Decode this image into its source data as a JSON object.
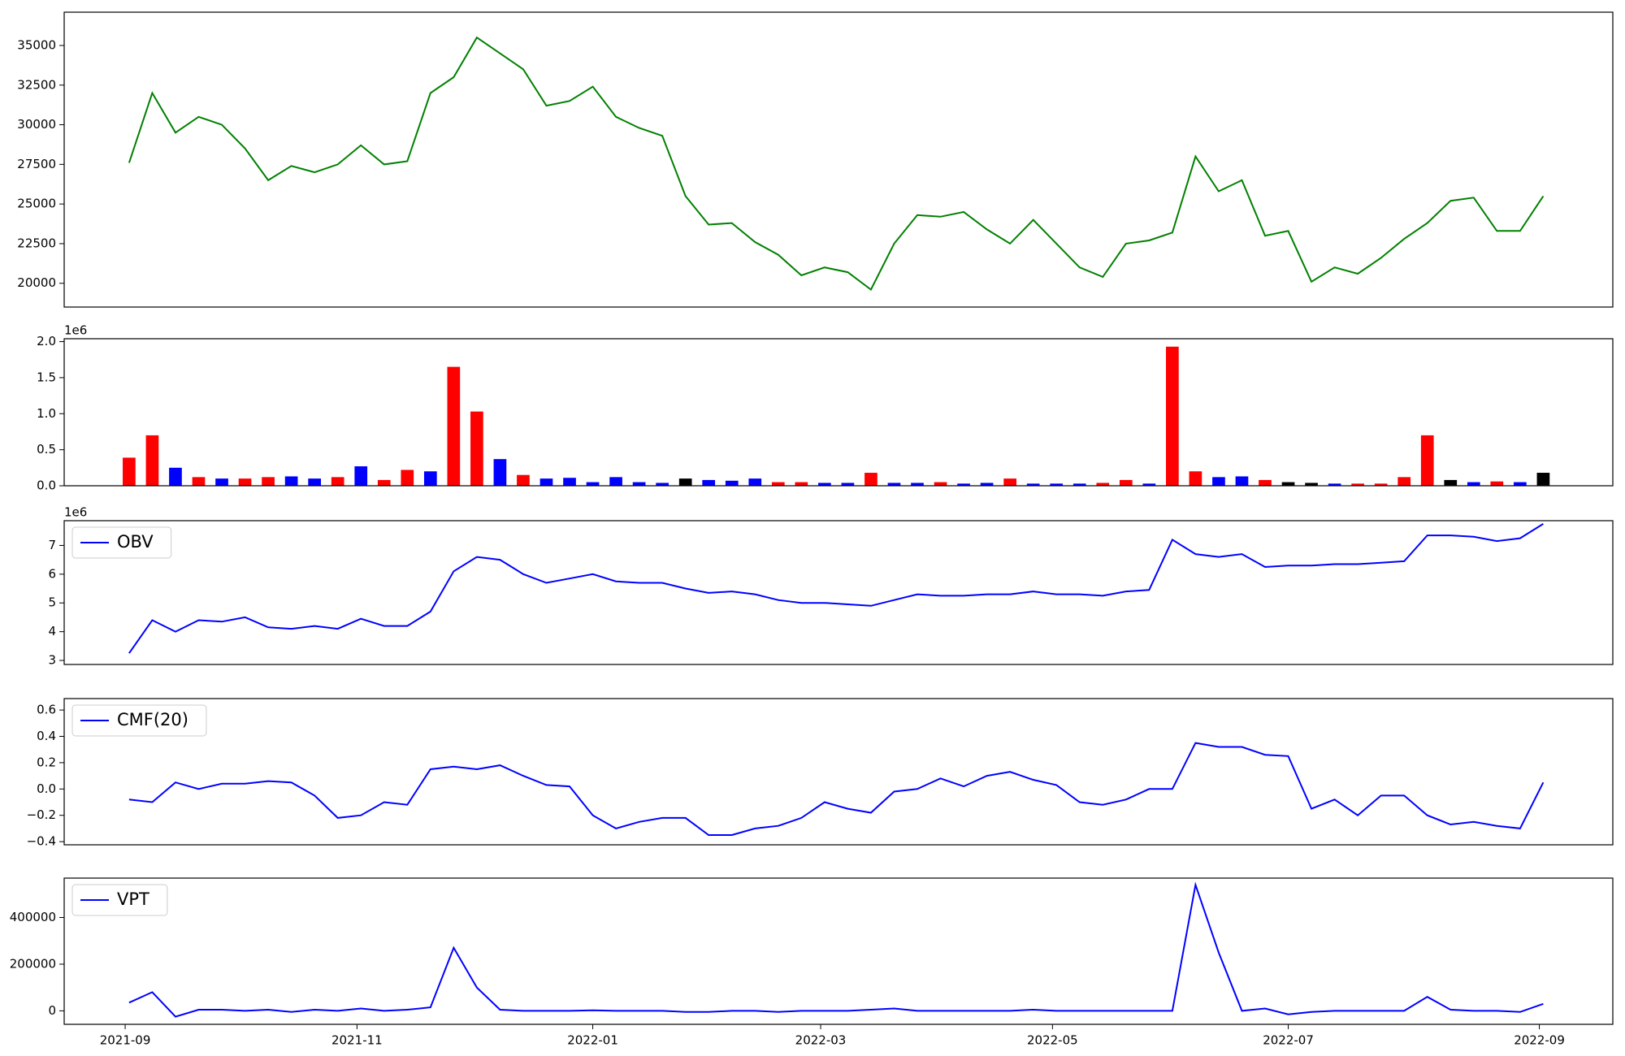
{
  "chart_data": [
    {
      "type": "line",
      "xlim": [
        -2.8,
        64
      ],
      "ylim": [
        18500,
        37100
      ],
      "yticks": [
        20000,
        22500,
        25000,
        27500,
        30000,
        32500,
        35000
      ],
      "grid": false,
      "series": [
        {
          "color": "#008000",
          "values": [
            27600,
            32000,
            29500,
            30500,
            30000,
            28500,
            26500,
            27400,
            27000,
            27500,
            28700,
            27500,
            27700,
            32000,
            33000,
            35500,
            34500,
            33500,
            31200,
            31500,
            32400,
            30500,
            29800,
            29300,
            25500,
            23700,
            23800,
            22600,
            21800,
            20500,
            21000,
            20700,
            19600,
            22500,
            24300,
            24200,
            24500,
            23400,
            22500,
            24000,
            22500,
            21000,
            20400,
            22500,
            22700,
            23200,
            28000,
            25800,
            26500,
            23000,
            23300,
            20100,
            21000,
            20600,
            21600,
            22800,
            23800,
            25200,
            25400,
            23300,
            23300,
            25500
          ]
        }
      ]
    },
    {
      "type": "bar",
      "xlim": [
        -2.8,
        64
      ],
      "ylim": [
        0,
        2.04
      ],
      "y_offset_label": "1e6",
      "yticks": [
        {
          "value": 0,
          "label": "0.0"
        },
        {
          "value": 0.5,
          "label": "0.5"
        },
        {
          "value": 1,
          "label": "1.0"
        },
        {
          "value": 1.5,
          "label": "1.5"
        },
        {
          "value": 2,
          "label": "2.0"
        }
      ],
      "grid": false,
      "values": [
        0.39,
        0.7,
        0.25,
        0.12,
        0.1,
        0.1,
        0.12,
        0.13,
        0.1,
        0.12,
        0.27,
        0.08,
        0.22,
        0.2,
        1.65,
        1.03,
        0.37,
        0.15,
        0.1,
        0.11,
        0.05,
        0.12,
        0.05,
        0.04,
        0.1,
        0.08,
        0.07,
        0.1,
        0.05,
        0.05,
        0.04,
        0.04,
        0.18,
        0.04,
        0.04,
        0.05,
        0.03,
        0.04,
        0.1,
        0.03,
        0.03,
        0.03,
        0.04,
        0.08,
        0.03,
        1.93,
        0.2,
        0.12,
        0.13,
        0.08,
        0.05,
        0.04,
        0.03,
        0.03,
        0.03,
        0.12,
        0.7,
        0.08,
        0.05,
        0.06,
        0.05,
        0.18
      ],
      "colors": [
        "#ff0000",
        "#ff0000",
        "#0000ff",
        "#ff0000",
        "#0000ff",
        "#ff0000",
        "#ff0000",
        "#0000ff",
        "#0000ff",
        "#ff0000",
        "#0000ff",
        "#ff0000",
        "#ff0000",
        "#0000ff",
        "#ff0000",
        "#ff0000",
        "#0000ff",
        "#ff0000",
        "#0000ff",
        "#0000ff",
        "#0000ff",
        "#0000ff",
        "#0000ff",
        "#0000ff",
        "#000000",
        "#0000ff",
        "#0000ff",
        "#0000ff",
        "#ff0000",
        "#ff0000",
        "#0000ff",
        "#0000ff",
        "#ff0000",
        "#0000ff",
        "#0000ff",
        "#ff0000",
        "#0000ff",
        "#0000ff",
        "#ff0000",
        "#0000ff",
        "#0000ff",
        "#0000ff",
        "#ff0000",
        "#ff0000",
        "#0000ff",
        "#ff0000",
        "#ff0000",
        "#0000ff",
        "#0000ff",
        "#ff0000",
        "#000000",
        "#000000",
        "#0000ff",
        "#ff0000",
        "#ff0000",
        "#ff0000",
        "#ff0000",
        "#000000",
        "#0000ff",
        "#ff0000",
        "#0000ff",
        "#000000"
      ]
    },
    {
      "type": "line",
      "xlim": [
        -2.8,
        64
      ],
      "ylim": [
        2.86,
        7.86
      ],
      "y_offset_label": "1e6",
      "yticks": [
        3,
        4,
        5,
        6,
        7
      ],
      "grid": false,
      "legend": "upper left",
      "series": [
        {
          "name": "OBV",
          "color": "#0000ff",
          "values": [
            3.25,
            4.4,
            4.0,
            4.4,
            4.35,
            4.5,
            4.15,
            4.1,
            4.2,
            4.1,
            4.45,
            4.2,
            4.2,
            4.7,
            6.1,
            6.6,
            6.5,
            6.0,
            5.7,
            5.85,
            6.0,
            5.75,
            5.7,
            5.7,
            5.5,
            5.35,
            5.4,
            5.3,
            5.1,
            5.0,
            5.0,
            4.95,
            4.9,
            5.1,
            5.3,
            5.25,
            5.25,
            5.3,
            5.3,
            5.4,
            5.3,
            5.3,
            5.25,
            5.4,
            5.45,
            7.2,
            6.7,
            6.6,
            6.7,
            6.25,
            6.3,
            6.3,
            6.35,
            6.35,
            6.4,
            6.45,
            7.35,
            7.35,
            7.3,
            7.15,
            7.25,
            7.75
          ]
        }
      ]
    },
    {
      "type": "line",
      "xlim": [
        -2.8,
        64
      ],
      "ylim": [
        -0.424,
        0.687
      ],
      "yticks": [
        {
          "value": -0.4,
          "label": "−0.4"
        },
        {
          "value": -0.2,
          "label": "−0.2"
        },
        {
          "value": 0,
          "label": "0.0"
        },
        0.2,
        0.4,
        0.6
      ],
      "grid": false,
      "legend": "upper left",
      "series": [
        {
          "name": "CMF(20)",
          "color": "#0000ff",
          "values": [
            -0.08,
            -0.1,
            0.05,
            0.0,
            0.04,
            0.04,
            0.06,
            0.05,
            -0.05,
            -0.22,
            -0.2,
            -0.1,
            -0.12,
            0.15,
            0.17,
            0.15,
            0.18,
            0.1,
            0.03,
            0.02,
            -0.2,
            -0.3,
            -0.25,
            -0.22,
            -0.22,
            -0.35,
            -0.35,
            -0.3,
            -0.28,
            -0.22,
            -0.1,
            -0.15,
            -0.18,
            -0.02,
            0.0,
            0.08,
            0.02,
            0.1,
            0.13,
            0.07,
            0.03,
            -0.1,
            -0.12,
            -0.08,
            0.0,
            0.0,
            0.35,
            0.32,
            0.32,
            0.26,
            0.25,
            -0.15,
            -0.08,
            -0.2,
            -0.05,
            -0.05,
            -0.2,
            -0.27,
            -0.25,
            -0.28,
            -0.3,
            0.05
          ]
        }
      ]
    },
    {
      "type": "line",
      "xlim": [
        -2.8,
        64
      ],
      "ylim": [
        -57800,
        568900
      ],
      "yticks": [
        0,
        200000,
        400000
      ],
      "grid": false,
      "legend": "upper left",
      "xticks": [
        {
          "value": -0.17,
          "label": "2021-09"
        },
        {
          "value": 9.83,
          "label": "2021-11"
        },
        {
          "value": 20,
          "label": "2022-01"
        },
        {
          "value": 29.83,
          "label": "2022-03"
        },
        {
          "value": 39.83,
          "label": "2022-05"
        },
        {
          "value": 50,
          "label": "2022-07"
        },
        {
          "value": 60.83,
          "label": "2022-09"
        }
      ],
      "series": [
        {
          "name": "VPT",
          "color": "#0000ff",
          "values": [
            35000,
            80000,
            -25000,
            5000,
            5000,
            0,
            5000,
            -5000,
            5000,
            0,
            10000,
            0,
            5000,
            15000,
            270000,
            100000,
            5000,
            0,
            0,
            0,
            2000,
            0,
            0,
            0,
            -5000,
            -5000,
            0,
            0,
            -5000,
            0,
            0,
            0,
            5000,
            10000,
            0,
            0,
            0,
            0,
            0,
            5000,
            0,
            0,
            0,
            0,
            0,
            0,
            540000,
            250000,
            0,
            10000,
            -15000,
            -5000,
            0,
            0,
            0,
            0,
            60000,
            5000,
            0,
            0,
            -5000,
            30000
          ]
        }
      ]
    }
  ]
}
